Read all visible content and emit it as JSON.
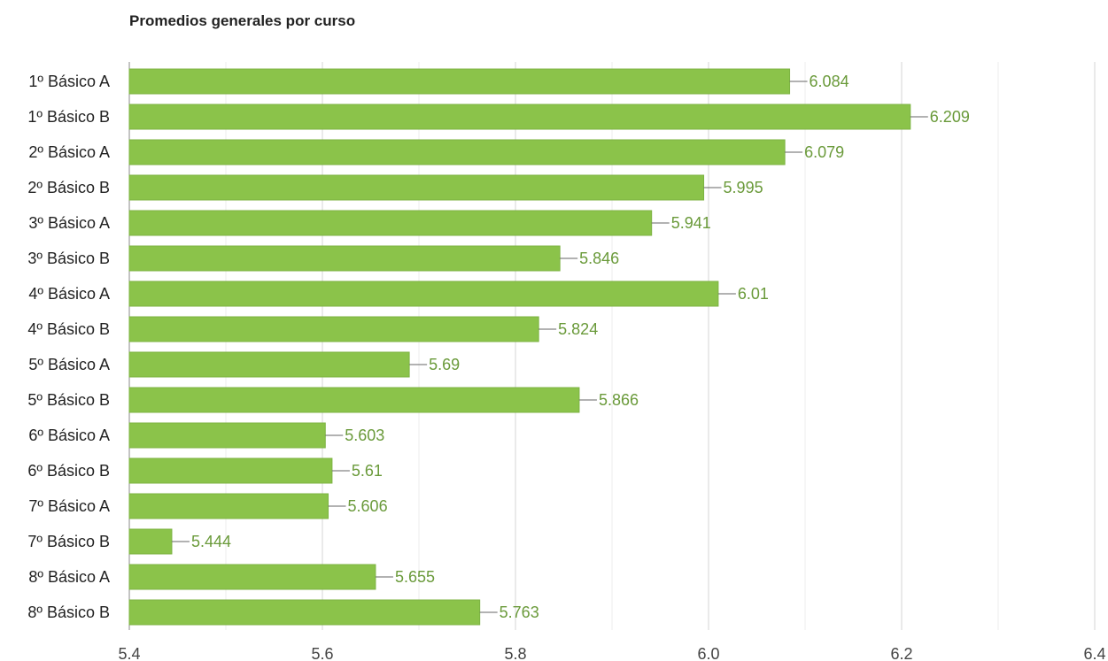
{
  "chart_data": {
    "type": "bar",
    "orientation": "horizontal",
    "title": "Promedios generales por curso",
    "xlabel": "",
    "ylabel": "",
    "categories": [
      "1º Básico A",
      "1º Básico B",
      "2º Básico A",
      "2º Básico B",
      "3º Básico A",
      "3º Básico B",
      "4º Básico A",
      "4º Básico B",
      "5º Básico A",
      "5º Básico B",
      "6º Básico A",
      "6º Básico B",
      "7º Básico A",
      "7º Básico B",
      "8º Básico A",
      "8º Básico B"
    ],
    "values": [
      6.084,
      6.209,
      6.079,
      5.995,
      5.941,
      5.846,
      6.01,
      5.824,
      5.69,
      5.866,
      5.603,
      5.61,
      5.606,
      5.444,
      5.655,
      5.763
    ],
    "value_labels": [
      "6.084",
      "6.209",
      "6.079",
      "5.995",
      "5.941",
      "5.846",
      "6.01",
      "5.824",
      "5.69",
      "5.866",
      "5.603",
      "5.61",
      "5.606",
      "5.444",
      "5.655",
      "5.763"
    ],
    "xlim": [
      5.4,
      6.4
    ],
    "ticks": [
      5.4,
      5.6,
      5.8,
      6.0,
      6.2,
      6.4
    ],
    "tick_labels": [
      "5.4",
      "5.6",
      "5.8",
      "6.0",
      "6.2",
      "6.4"
    ],
    "grid": true,
    "legend": "none",
    "bar_color": "#8bc34a",
    "label_color": "#6a9a3a",
    "grid_color": "#d4d4d4"
  }
}
